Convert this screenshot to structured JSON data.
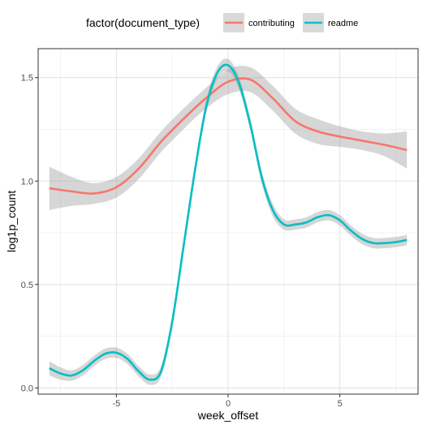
{
  "chart_data": {
    "type": "line",
    "xlabel": "week_offset",
    "ylabel": "log1p_count",
    "xlim": [
      -8.5,
      8.5
    ],
    "ylim": [
      -0.03,
      1.64
    ],
    "x_ticks": [
      -5,
      0,
      5
    ],
    "x_tick_labels": [
      "-5",
      "0",
      "5"
    ],
    "y_ticks": [
      0.0,
      0.5,
      1.0,
      1.5
    ],
    "y_tick_labels": [
      "0.0",
      "0.5",
      "1.0",
      "1.5"
    ],
    "grid": true,
    "legend": {
      "title": "factor(document_type)",
      "position": "top"
    },
    "series": [
      {
        "name": "contributing",
        "color": "#F8766D",
        "x": [
          -8,
          -7,
          -6,
          -5,
          -4,
          -3,
          -2,
          -1,
          0,
          1,
          2,
          3,
          4,
          5,
          6,
          7,
          8
        ],
        "values": [
          0.965,
          0.95,
          0.94,
          0.97,
          1.06,
          1.19,
          1.3,
          1.4,
          1.48,
          1.49,
          1.4,
          1.29,
          1.24,
          1.215,
          1.195,
          1.175,
          1.15
        ],
        "ci_low": [
          0.86,
          0.88,
          0.89,
          0.92,
          1.01,
          1.14,
          1.25,
          1.35,
          1.42,
          1.43,
          1.34,
          1.23,
          1.18,
          1.165,
          1.15,
          1.12,
          1.06
        ],
        "ci_high": [
          1.07,
          1.02,
          0.99,
          1.02,
          1.11,
          1.24,
          1.35,
          1.45,
          1.54,
          1.55,
          1.46,
          1.35,
          1.3,
          1.265,
          1.24,
          1.23,
          1.24
        ]
      },
      {
        "name": "readme",
        "color": "#00BFC4",
        "x": [
          -8,
          -7.5,
          -7,
          -6.5,
          -6,
          -5.5,
          -5,
          -4.5,
          -4,
          -3.5,
          -3,
          -2.5,
          -2,
          -1.5,
          -1,
          -0.5,
          0,
          0.5,
          1,
          1.5,
          2,
          2.5,
          3,
          3.5,
          4,
          4.5,
          5,
          5.5,
          6,
          6.5,
          7,
          7.5,
          8
        ],
        "values": [
          0.095,
          0.07,
          0.06,
          0.085,
          0.13,
          0.165,
          0.17,
          0.14,
          0.08,
          0.04,
          0.08,
          0.32,
          0.68,
          1.04,
          1.35,
          1.52,
          1.56,
          1.47,
          1.27,
          1.02,
          0.86,
          0.79,
          0.79,
          0.8,
          0.825,
          0.835,
          0.81,
          0.76,
          0.72,
          0.7,
          0.7,
          0.705,
          0.715
        ],
        "ci_low": [
          0.06,
          0.04,
          0.035,
          0.06,
          0.105,
          0.14,
          0.145,
          0.115,
          0.055,
          0.015,
          0.055,
          0.29,
          0.65,
          1.01,
          1.32,
          1.49,
          1.53,
          1.44,
          1.24,
          0.99,
          0.83,
          0.765,
          0.765,
          0.775,
          0.8,
          0.81,
          0.785,
          0.735,
          0.695,
          0.675,
          0.675,
          0.68,
          0.69
        ],
        "ci_high": [
          0.13,
          0.1,
          0.085,
          0.11,
          0.155,
          0.19,
          0.195,
          0.165,
          0.105,
          0.065,
          0.105,
          0.35,
          0.71,
          1.07,
          1.38,
          1.55,
          1.59,
          1.5,
          1.3,
          1.05,
          0.89,
          0.815,
          0.815,
          0.825,
          0.85,
          0.86,
          0.835,
          0.785,
          0.745,
          0.725,
          0.725,
          0.73,
          0.74
        ]
      }
    ]
  }
}
